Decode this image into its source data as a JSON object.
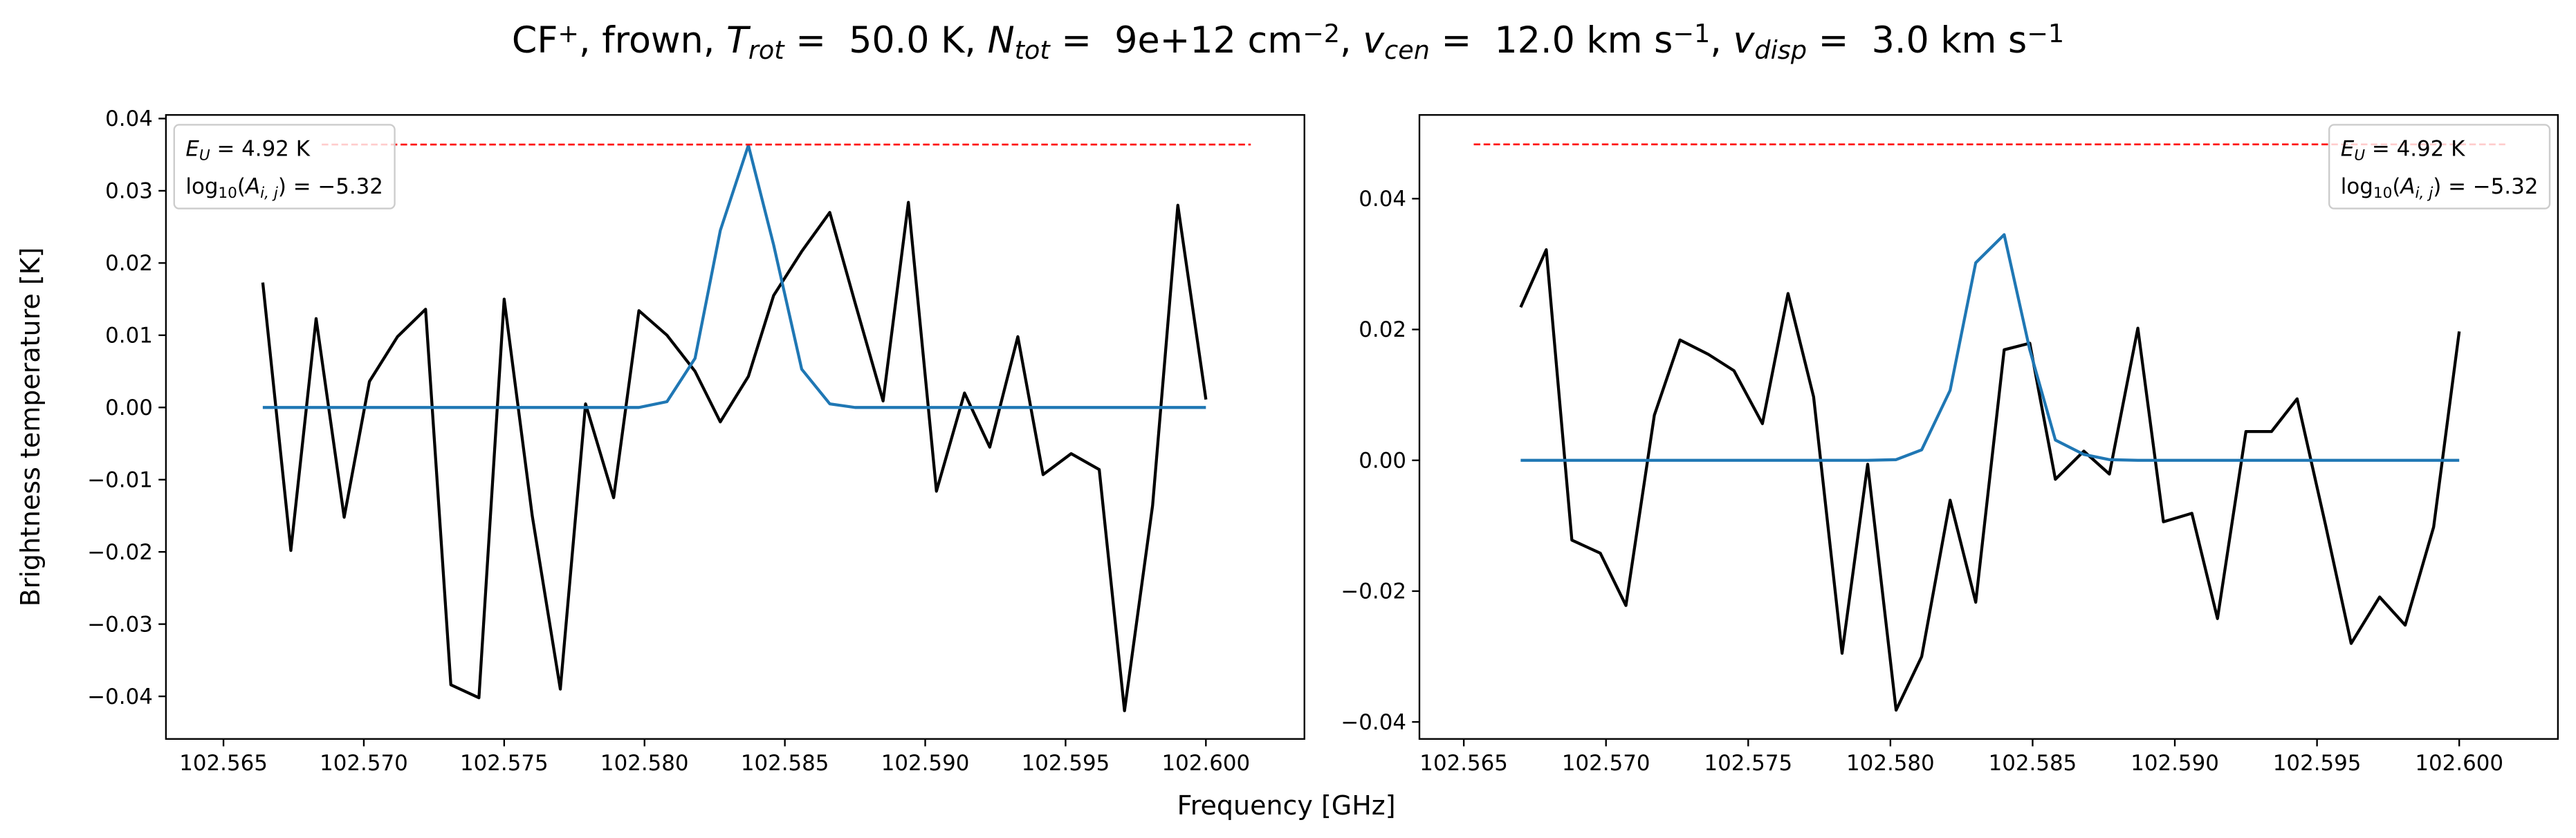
{
  "title_parts": [
    {
      "text": "CF"
    },
    {
      "text": "+",
      "shift": "super"
    },
    {
      "text": ", frown, "
    },
    {
      "text": "T",
      "style": "italic"
    },
    {
      "text": "rot",
      "style": "italic",
      "shift": "sub"
    },
    {
      "text": " =  50.0 K, "
    },
    {
      "text": "N",
      "style": "italic"
    },
    {
      "text": "tot",
      "style": "italic",
      "shift": "sub"
    },
    {
      "text": " =  9e+12 cm"
    },
    {
      "text": "−2",
      "shift": "super"
    },
    {
      "text": ", "
    },
    {
      "text": "v",
      "style": "italic"
    },
    {
      "text": "cen",
      "style": "italic",
      "shift": "sub"
    },
    {
      "text": " =  12.0 km s"
    },
    {
      "text": "−1",
      "shift": "super"
    },
    {
      "text": ", "
    },
    {
      "text": "v",
      "style": "italic"
    },
    {
      "text": "disp",
      "style": "italic",
      "shift": "sub"
    },
    {
      "text": " =  3.0 km s"
    },
    {
      "text": "−1",
      "shift": "super"
    }
  ],
  "x_label": "Frequency [GHz]",
  "y_label": "Brightness temperature [K]",
  "chart_data": [
    {
      "type": "line",
      "xlim": [
        102.56295,
        102.60351
      ],
      "ylim": [
        -0.0459,
        0.0405
      ],
      "xticks": [
        102.565,
        {
          "value": 102.57,
          "label": "102.570"
        },
        102.575,
        {
          "value": 102.58,
          "label": "102.580"
        },
        102.585,
        {
          "value": 102.59,
          "label": "102.590"
        },
        102.595,
        {
          "value": 102.6,
          "label": "102.600"
        }
      ],
      "yticks": [
        0.04,
        0.03,
        0.02,
        0.01,
        {
          "value": 0,
          "label": "0.00"
        },
        {
          "value": -0.01,
          "label": "−0.01"
        },
        {
          "value": -0.02,
          "label": "−0.02"
        },
        {
          "value": -0.03,
          "label": "−0.03"
        },
        {
          "value": -0.04,
          "label": "−0.04"
        }
      ],
      "legend_loc": "upper left",
      "legend_texts": [
        [
          {
            "text": "E",
            "style": "italic"
          },
          {
            "text": "U",
            "style": "italic",
            "shift": "sub"
          },
          {
            "text": " = 4.92 K"
          }
        ],
        [
          {
            "text": "log"
          },
          {
            "text": "10",
            "shift": "sub"
          },
          {
            "text": "("
          },
          {
            "text": "A",
            "style": "italic"
          },
          {
            "text": "i, j",
            "style": "italic",
            "shift": "sub"
          },
          {
            "text": ") = −5.32"
          }
        ]
      ],
      "series": [
        {
          "color": "#000000",
          "x": [
            102.5664,
            102.5674,
            102.5683,
            102.5693,
            102.5702,
            102.5712,
            102.5722,
            102.5731,
            102.5741,
            102.575,
            102.576,
            102.577,
            102.5779,
            102.5789,
            102.5798,
            102.5808,
            102.5818,
            102.5827,
            102.5837,
            102.5846,
            102.5856,
            102.5866,
            102.5875,
            102.5885,
            102.5894,
            102.5904,
            102.5914,
            102.5923,
            102.5933,
            102.5942,
            102.5952,
            102.5962,
            102.5971,
            102.5981,
            102.599,
            102.6
          ],
          "values": [
            0.0173,
            -0.0198,
            0.0123,
            -0.0152,
            0.0036,
            0.0098,
            0.0136,
            -0.0384,
            -0.0402,
            0.015,
            -0.015,
            -0.039,
            0.0005,
            -0.0125,
            0.0134,
            0.01,
            0.005,
            -0.002,
            0.0043,
            0.0155,
            0.0216,
            0.027,
            0.0145,
            0.0009,
            0.0284,
            -0.0116,
            0.002,
            -0.0055,
            0.0098,
            -0.0093,
            -0.0064,
            -0.0086,
            -0.042,
            -0.0136,
            0.028,
            0.0011
          ]
        },
        {
          "color": "#1f77b4",
          "x": [
            102.5664,
            102.5674,
            102.5683,
            102.5693,
            102.5702,
            102.5712,
            102.5722,
            102.5731,
            102.5741,
            102.575,
            102.576,
            102.577,
            102.5779,
            102.5789,
            102.5798,
            102.5808,
            102.5818,
            102.5827,
            102.5837,
            102.5846,
            102.5856,
            102.5866,
            102.5875,
            102.5885,
            102.5894,
            102.5904,
            102.5914,
            102.5923,
            102.5933,
            102.5942,
            102.5952,
            102.5962,
            102.5971,
            102.5981,
            102.599,
            102.6
          ],
          "values": [
            0,
            0,
            0,
            0,
            0,
            0,
            0,
            0,
            0,
            0,
            0,
            0,
            0,
            0,
            0,
            0.0008,
            0.0068,
            0.0245,
            0.0363,
            0.0225,
            0.0053,
            0.0005,
            0,
            0,
            0,
            0,
            0,
            0,
            0,
            0,
            0,
            0,
            0,
            0,
            0,
            0
          ]
        },
        {
          "color": "#ff0000",
          "dashed": true,
          "x": [
            102.5685,
            102.6016
          ],
          "values": [
            0.0364,
            0.0364
          ]
        }
      ]
    },
    {
      "type": "line",
      "xlim": [
        102.56344,
        102.60347
      ],
      "ylim": [
        -0.0426,
        0.0528
      ],
      "xticks": [
        102.565,
        {
          "value": 102.57,
          "label": "102.570"
        },
        102.575,
        {
          "value": 102.58,
          "label": "102.580"
        },
        102.585,
        {
          "value": 102.59,
          "label": "102.590"
        },
        102.595,
        {
          "value": 102.6,
          "label": "102.600"
        }
      ],
      "yticks": [
        0.04,
        0.02,
        {
          "value": 0,
          "label": "0.00"
        },
        {
          "value": -0.02,
          "label": "−0.02"
        },
        {
          "value": -0.04,
          "label": "−0.04"
        }
      ],
      "legend_loc": "upper right",
      "legend_texts": [
        [
          {
            "text": "E",
            "style": "italic"
          },
          {
            "text": "U",
            "style": "italic",
            "shift": "sub"
          },
          {
            "text": " = 4.92 K"
          }
        ],
        [
          {
            "text": "log"
          },
          {
            "text": "10",
            "shift": "sub"
          },
          {
            "text": "("
          },
          {
            "text": "A",
            "style": "italic"
          },
          {
            "text": "i, j",
            "style": "italic",
            "shift": "sub"
          },
          {
            "text": ") = −5.32"
          }
        ]
      ],
      "series": [
        {
          "color": "#000000",
          "x": [
            102.567,
            102.5679,
            102.5688,
            102.5698,
            102.5707,
            102.5717,
            102.5726,
            102.5736,
            102.5745,
            102.5755,
            102.5764,
            102.5773,
            102.5783,
            102.5792,
            102.5802,
            102.5811,
            102.5821,
            102.583,
            102.584,
            102.5849,
            102.5858,
            102.5868,
            102.5877,
            102.5887,
            102.5896,
            102.5906,
            102.5915,
            102.5925,
            102.5934,
            102.5943,
            102.5953,
            102.5962,
            102.5972,
            102.5981,
            102.5991,
            102.6
          ],
          "values": [
            0.0234,
            0.0322,
            -0.0122,
            -0.0142,
            -0.0222,
            0.0069,
            0.0184,
            0.0162,
            0.0137,
            0.0056,
            0.0255,
            0.0097,
            -0.0295,
            -0.0006,
            -0.0382,
            -0.03,
            -0.0061,
            -0.0217,
            0.0169,
            0.0179,
            -0.0029,
            0.0014,
            -0.0021,
            0.0202,
            -0.0094,
            -0.0081,
            -0.0242,
            0.0044,
            0.0044,
            0.0094,
            -0.0099,
            -0.028,
            -0.0209,
            -0.0252,
            -0.0102,
            0.0197
          ]
        },
        {
          "color": "#1f77b4",
          "x": [
            102.567,
            102.5679,
            102.5688,
            102.5698,
            102.5707,
            102.5717,
            102.5726,
            102.5736,
            102.5745,
            102.5755,
            102.5764,
            102.5773,
            102.5783,
            102.5792,
            102.5802,
            102.5811,
            102.5821,
            102.583,
            102.584,
            102.5849,
            102.5858,
            102.5868,
            102.5877,
            102.5887,
            102.5896,
            102.5906,
            102.5915,
            102.5925,
            102.5934,
            102.5943,
            102.5953,
            102.5962,
            102.5972,
            102.5981,
            102.5991,
            102.6
          ],
          "values": [
            0,
            0,
            0,
            0,
            0,
            0,
            0,
            0,
            0,
            0,
            0,
            0,
            0,
            0,
            0.0001,
            0.0016,
            0.0107,
            0.0302,
            0.0345,
            0.0169,
            0.0031,
            0.0009,
            0.0001,
            0,
            0,
            0,
            0,
            0,
            0,
            0,
            0,
            0,
            0,
            0,
            0,
            0
          ]
        },
        {
          "color": "#ff0000",
          "dashed": true,
          "x": [
            102.56535,
            102.60162
          ],
          "values": [
            0.0483,
            0.0483
          ]
        }
      ]
    }
  ]
}
